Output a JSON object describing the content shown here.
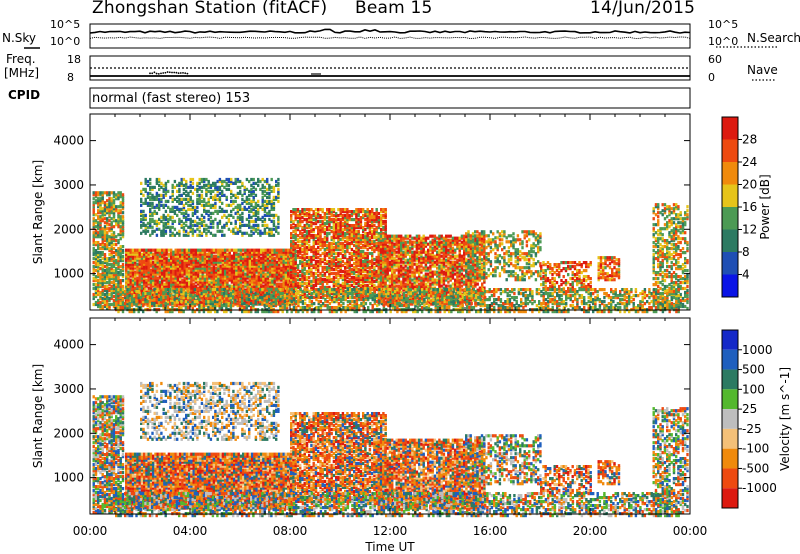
{
  "header": {
    "station": "Zhongshan Station (fitACF)",
    "beam": "Beam 15",
    "date": "14/Jun/2015"
  },
  "panels": {
    "sky": {
      "left_label": "N.Sky",
      "right_label": "N.Search",
      "left_ticks": [
        "10^5",
        "10^0"
      ],
      "right_ticks": [
        "10^5",
        "10^0"
      ]
    },
    "freq": {
      "left_label_1": "Freq.",
      "left_label_2": "[MHz]",
      "right_label": "Nave",
      "left_ticks": [
        "18",
        "8"
      ],
      "right_ticks": [
        "60",
        "0"
      ]
    },
    "cpid": {
      "label": "CPID",
      "text": "normal (fast stereo) 153"
    }
  },
  "colors": {
    "power_scale": [
      "#0a14e6",
      "#1f4fb4",
      "#2c7a62",
      "#4c9a54",
      "#e6c41a",
      "#f08a0c",
      "#ee4a10",
      "#dd1a10"
    ],
    "velocity_scale": [
      "#1428c8",
      "#1f5fbe",
      "#2c7a62",
      "#54b82e",
      "#bebebe",
      "#f4c078",
      "#f08a0c",
      "#ee4a10",
      "#dd1a10"
    ]
  },
  "chart_data": [
    {
      "type": "heatmap",
      "title": "Power",
      "ylabel": "Slant Range [km]",
      "xlabel": "",
      "x_ticks": [
        "00:00",
        "04:00",
        "08:00",
        "12:00",
        "16:00",
        "20:00",
        "00:00"
      ],
      "y_ticks": [
        1000,
        2000,
        3000,
        4000
      ],
      "ylim": [
        180,
        4600
      ],
      "colorbar": {
        "label": "Power [dB]",
        "ticks": [
          4,
          8,
          12,
          16,
          20,
          24,
          28
        ],
        "range": [
          0,
          32
        ]
      }
    },
    {
      "type": "heatmap",
      "title": "Velocity",
      "ylabel": "Slant Range [km]",
      "xlabel": "Time UT",
      "x_ticks": [
        "00:00",
        "04:00",
        "08:00",
        "12:00",
        "16:00",
        "20:00",
        "00:00"
      ],
      "y_ticks": [
        1000,
        2000,
        3000,
        4000
      ],
      "ylim": [
        180,
        4600
      ],
      "colorbar": {
        "label": "Velocity [m s^-1]",
        "ticks": [
          "1000",
          "500",
          "100",
          "25",
          "-25",
          "-100",
          "-500",
          "-1000"
        ]
      }
    }
  ]
}
